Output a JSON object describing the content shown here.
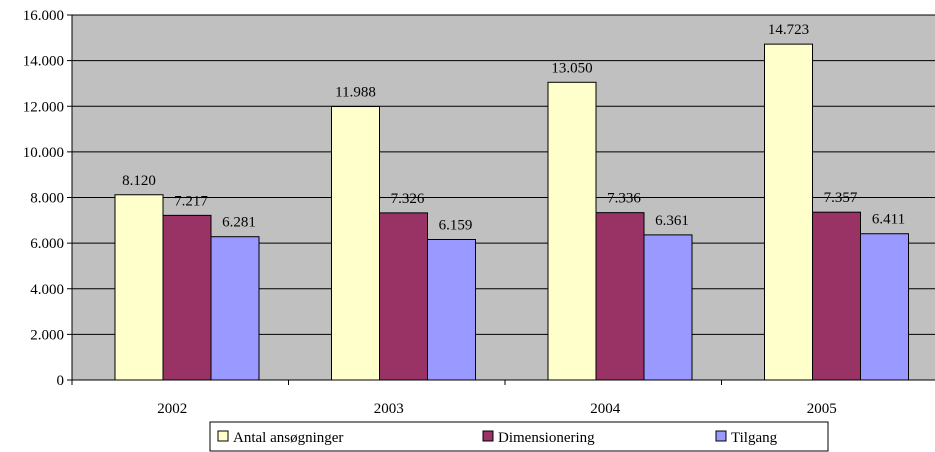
{
  "chart_data": {
    "type": "bar",
    "title": "",
    "xlabel": "",
    "ylabel": "",
    "categories": [
      "2002",
      "2003",
      "2004",
      "2005"
    ],
    "series": [
      {
        "name": "Antal ansøgninger",
        "values": [
          8120,
          11988,
          13050,
          14723
        ],
        "labels": [
          "8.120",
          "11.988",
          "13.050",
          "14.723"
        ],
        "color": "#FFFFCC"
      },
      {
        "name": "Dimensionering",
        "values": [
          7217,
          7326,
          7336,
          7357
        ],
        "labels": [
          "7.217",
          "7.326",
          "7.336",
          "7.357"
        ],
        "color": "#993366"
      },
      {
        "name": "Tilgang",
        "values": [
          6281,
          6159,
          6361,
          6411
        ],
        "labels": [
          "6.281",
          "6.159",
          "6.361",
          "6.411"
        ],
        "color": "#9999FF"
      }
    ],
    "ylim": [
      0,
      16000
    ],
    "yticks": [
      0,
      2000,
      4000,
      6000,
      8000,
      10000,
      12000,
      14000,
      16000
    ],
    "ytick_labels": [
      "0",
      "2.000",
      "4.000",
      "6.000",
      "8.000",
      "10.000",
      "12.000",
      "14.000",
      "16.000"
    ],
    "grid": true,
    "plot_background": "#C0C0C0",
    "legend_position": "bottom"
  }
}
